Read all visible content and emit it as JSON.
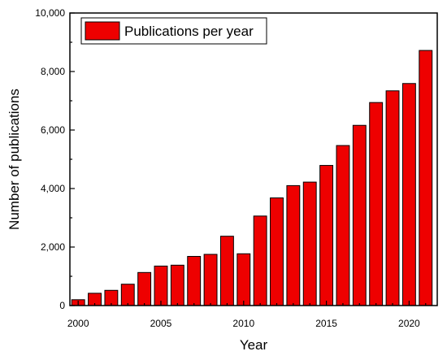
{
  "chart_data": {
    "type": "bar",
    "x": [
      2000,
      2001,
      2002,
      2003,
      2004,
      2005,
      2006,
      2007,
      2008,
      2009,
      2010,
      2011,
      2012,
      2013,
      2014,
      2015,
      2016,
      2017,
      2018,
      2019,
      2020,
      2021
    ],
    "series": [
      {
        "name": "Publications per year",
        "values": [
          200,
          420,
          520,
          730,
          1130,
          1350,
          1380,
          1680,
          1750,
          2370,
          1770,
          3060,
          3680,
          4100,
          4220,
          4790,
          5470,
          6160,
          6940,
          7340,
          7590,
          8720
        ]
      }
    ],
    "xlabel": "Year",
    "ylabel": "Number of publications",
    "ylim": [
      0,
      10000
    ],
    "xlim": [
      1999.5,
      2021.7
    ],
    "x_ticks": [
      "2000",
      "2005",
      "2010",
      "2015",
      "2020"
    ],
    "y_ticks": [
      "0",
      "2,000",
      "4,000",
      "6,000",
      "8,000",
      "10,000"
    ],
    "grid": false,
    "legend_position": "top-left",
    "colors": {
      "bar_fill": "#ee0000",
      "bar_stroke": "#000000",
      "axis": "#000000"
    }
  }
}
